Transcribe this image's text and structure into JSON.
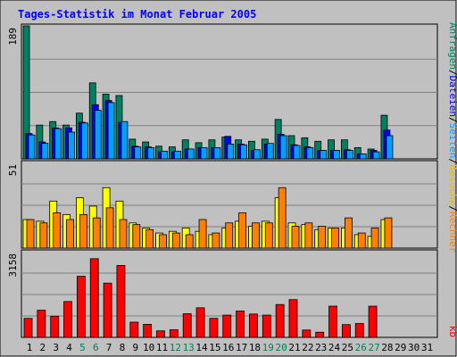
{
  "chart_data": {
    "type": "bar",
    "title": "Tages-Statistik im Monat Februar 2005",
    "days": [
      "1",
      "2",
      "3",
      "4",
      "5",
      "6",
      "7",
      "8",
      "9",
      "10",
      "11",
      "12",
      "13",
      "14",
      "15",
      "16",
      "17",
      "18",
      "19",
      "20",
      "21",
      "22",
      "23",
      "24",
      "25",
      "26",
      "27",
      "28",
      "29",
      "30",
      "31"
    ],
    "weekend_days": [
      "5",
      "6",
      "12",
      "13",
      "19",
      "20",
      "26",
      "27"
    ],
    "panels": [
      {
        "name": "requests-files-pages",
        "ymax": 189,
        "ymax_label": "189",
        "series": [
          {
            "name": "Anfragen",
            "color": "#008060",
            "values": [
              189,
              48,
              53,
              48,
              65,
              108,
              92,
              90,
              28,
              24,
              18,
              17,
              27,
              23,
              27,
              31,
              27,
              25,
              28,
              56,
              33,
              30,
              25,
              27,
              27,
              16,
              14,
              62,
              0,
              0,
              0
            ]
          },
          {
            "name": "Dateien",
            "color": "#0000ff",
            "values": [
              36,
              24,
              44,
              44,
              52,
              77,
              83,
              52,
              18,
              17,
              10,
              10,
              14,
              16,
              16,
              32,
              21,
              12,
              21,
              35,
              20,
              17,
              12,
              12,
              13,
              7,
              12,
              41,
              0,
              0,
              0
            ]
          },
          {
            "name": "Seiten",
            "color": "#00a0ff",
            "values": [
              34,
              22,
              43,
              38,
              51,
              69,
              80,
              53,
              17,
              16,
              11,
              11,
              14,
              16,
              16,
              21,
              20,
              13,
              22,
              33,
              19,
              16,
              12,
              12,
              12,
              7,
              10,
              33,
              0,
              0,
              0
            ]
          }
        ]
      },
      {
        "name": "visits-machines",
        "ymax": 51,
        "ymax_label": "51",
        "series": [
          {
            "name": "Besuche",
            "color": "#ffff00",
            "values": [
              17,
              16,
              28,
              20,
              30,
              25,
              36,
              28,
              15,
              12,
              9,
              10,
              12,
              10,
              8,
              12,
              16,
              13,
              16,
              30,
              15,
              14,
              11,
              12,
              12,
              8,
              7,
              17,
              0,
              0,
              0
            ]
          },
          {
            "name": "Rechner",
            "color": "#ff8000",
            "values": [
              17,
              15,
              21,
              17,
              20,
              18,
              24,
              17,
              14,
              11,
              8,
              9,
              8,
              17,
              9,
              15,
              21,
              15,
              15,
              36,
              13,
              15,
              13,
              12,
              18,
              9,
              12,
              18,
              0,
              0,
              0
            ]
          }
        ]
      },
      {
        "name": "kb",
        "ymax": 3158,
        "ymax_label": "3158",
        "series": [
          {
            "name": "kb",
            "color": "#ff0000",
            "values": [
              700,
              1000,
              780,
              1320,
              2250,
              2900,
              2000,
              2650,
              560,
              480,
              240,
              280,
              870,
              1090,
              700,
              820,
              970,
              860,
              820,
              1210,
              1390,
              270,
              190,
              1150,
              470,
              510,
              1150,
              0,
              0,
              0,
              0
            ]
          }
        ]
      }
    ],
    "right_labels": [
      {
        "text": "Anfragen",
        "color": "#008060"
      },
      {
        "text": "/",
        "color": "#000000"
      },
      {
        "text": "Dateien",
        "color": "#0000ff"
      },
      {
        "text": "/",
        "color": "#000000"
      },
      {
        "text": "Seiten",
        "color": "#00a0ff"
      },
      {
        "text": "/",
        "color": "#000000"
      },
      {
        "text": "Besuche",
        "color": "#e0c000"
      },
      {
        "text": "/",
        "color": "#000000"
      },
      {
        "text": "Rechner",
        "color": "#ff8000"
      },
      {
        "text": "kb",
        "color": "#ff0000"
      }
    ],
    "colors": {
      "background": "#c0c0c0",
      "plot": "#c0c0c0",
      "title": "#0000ff",
      "weekday_label": "#000000",
      "weekend_label": "#00805c",
      "grid": "#808080"
    }
  }
}
